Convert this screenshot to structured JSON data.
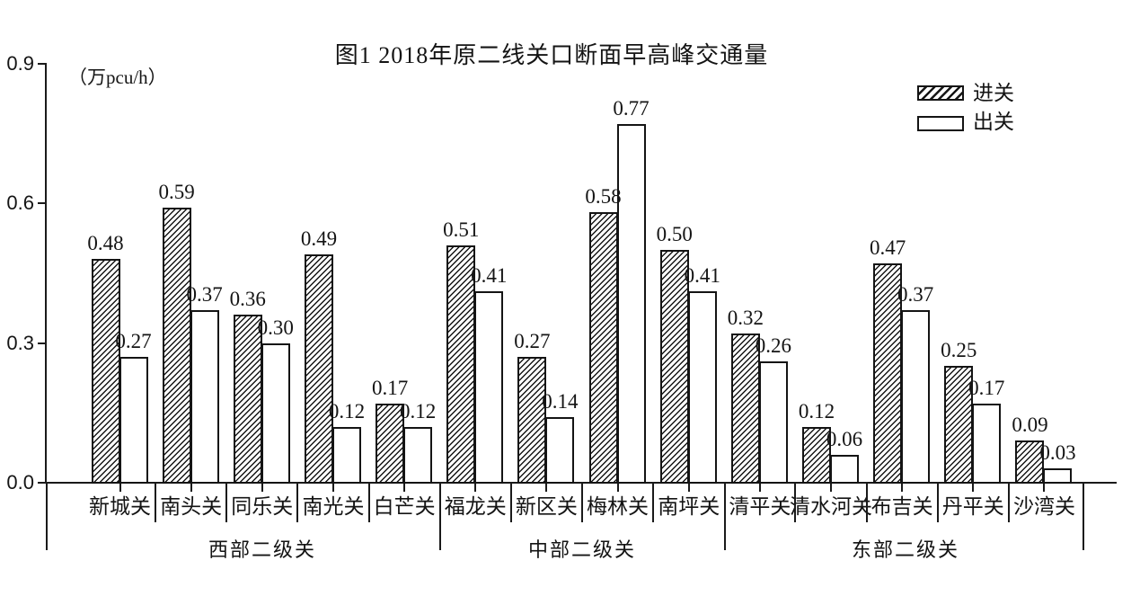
{
  "chart_data": {
    "type": "bar",
    "title": "图1 2018年原二线关口断面早高峰交通量",
    "unit_label": "（万pcu/h）",
    "ylabel": "（万pcu/h）",
    "ylim": [
      0,
      0.9
    ],
    "ytick_values": [
      0.0,
      0.3,
      0.6,
      0.9
    ],
    "ytick_labels": [
      "0.0",
      "0.3",
      "0.6",
      "0.9"
    ],
    "grid": false,
    "legend_position": "top-right",
    "legend": [
      {
        "name": "进关",
        "pattern": "diagonal-hatch"
      },
      {
        "name": "出关",
        "pattern": "plain-white"
      }
    ],
    "groups": [
      {
        "label": "西部二级关",
        "categories": [
          "新城关",
          "南头关",
          "同乐关",
          "南光关",
          "白芒关"
        ]
      },
      {
        "label": "中部二级关",
        "categories": [
          "福龙关",
          "新区关",
          "梅林关",
          "南坪关"
        ]
      },
      {
        "label": "东部二级关",
        "categories": [
          "清平关",
          "清水河关",
          "布吉关",
          "丹平关",
          "沙湾关"
        ]
      }
    ],
    "categories": [
      "新城关",
      "南头关",
      "同乐关",
      "南光关",
      "白芒关",
      "福龙关",
      "新区关",
      "梅林关",
      "南坪关",
      "清平关",
      "清水河关",
      "布吉关",
      "丹平关",
      "沙湾关"
    ],
    "series": [
      {
        "name": "进关",
        "values": [
          0.48,
          0.59,
          0.36,
          0.49,
          0.17,
          0.51,
          0.27,
          0.58,
          0.5,
          0.32,
          0.12,
          0.47,
          0.25,
          0.09
        ],
        "labels": [
          "0.48",
          "0.59",
          "0.36",
          "0.49",
          "0.17",
          "0.51",
          "0.27",
          "0.58",
          "0.50",
          "0.32",
          "0.12",
          "0.47",
          "0.25",
          "0.09"
        ]
      },
      {
        "name": "出关",
        "values": [
          0.27,
          0.37,
          0.3,
          0.12,
          0.12,
          0.41,
          0.14,
          0.77,
          0.41,
          0.26,
          0.06,
          0.37,
          0.17,
          0.03
        ],
        "labels": [
          "0.27",
          "0.37",
          "0.30",
          "0.12",
          "0.12",
          "0.41",
          "0.14",
          "0.77",
          "0.41",
          "0.26",
          "0.06",
          "0.37",
          "0.17",
          "0.03"
        ]
      }
    ]
  },
  "colors": {
    "ink": "#141414",
    "background": "#ffffff"
  }
}
